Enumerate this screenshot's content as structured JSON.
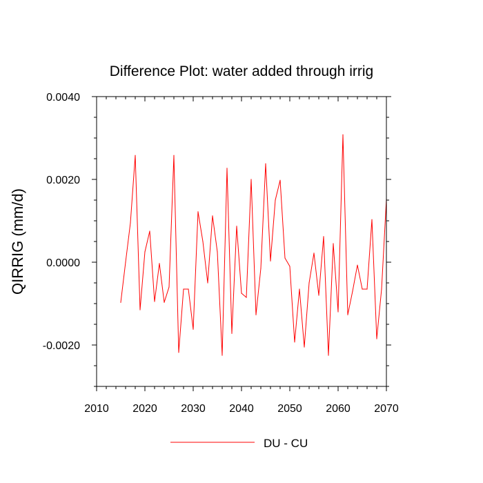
{
  "chart_data": {
    "type": "line",
    "title": "Difference Plot: water added through irrig",
    "xlabel": "",
    "ylabel": "QIRRIG  (mm/d)",
    "xlim": [
      2010,
      2070
    ],
    "ylim": [
      -0.003,
      0.004
    ],
    "xticks": [
      2010,
      2020,
      2030,
      2040,
      2050,
      2060,
      2070
    ],
    "xtick_labels": [
      "2010",
      "2020",
      "2030",
      "2040",
      "2050",
      "2060",
      "2070"
    ],
    "yticks": [
      0.004,
      0.002,
      0.0,
      -0.002
    ],
    "ytick_labels": [
      "0.0040",
      "0.0020",
      "0.0000",
      "-0.0020"
    ],
    "x_minor_step": 2,
    "y_minor_step": 0.0005,
    "legend_position": "bottom-center",
    "grid": false,
    "series": [
      {
        "name": "DU - CU",
        "color": "#ff0000",
        "x": [
          2015,
          2016,
          2017,
          2018,
          2019,
          2020,
          2021,
          2022,
          2023,
          2024,
          2025,
          2026,
          2027,
          2028,
          2029,
          2030,
          2031,
          2032,
          2033,
          2034,
          2035,
          2036,
          2037,
          2038,
          2039,
          2040,
          2041,
          2042,
          2043,
          2044,
          2045,
          2046,
          2047,
          2048,
          2049,
          2050,
          2051,
          2052,
          2053,
          2054,
          2055,
          2056,
          2057,
          2058,
          2059,
          2060,
          2061,
          2062,
          2063,
          2064,
          2065,
          2066,
          2067,
          2068,
          2069,
          2070
        ],
        "values": [
          -0.00097,
          0.0,
          0.00095,
          0.00258,
          -0.00115,
          0.00025,
          0.00075,
          -0.00095,
          -3e-05,
          -0.00097,
          -0.0006,
          0.00258,
          -0.00218,
          -0.00065,
          -0.00065,
          -0.00162,
          0.00122,
          0.0005,
          -0.0005,
          0.00112,
          0.00025,
          -0.00225,
          0.00227,
          -0.00172,
          0.00087,
          -0.00075,
          -0.00085,
          0.002,
          -0.00127,
          -0.00015,
          0.00238,
          3e-05,
          0.0015,
          0.00198,
          0.0001,
          -0.0001,
          -0.00193,
          -0.00065,
          -0.00205,
          -0.0005,
          0.00022,
          -0.0008,
          0.00062,
          -0.00225,
          0.00045,
          -0.0012,
          0.00308,
          -0.00127,
          -0.0007,
          -7e-05,
          -0.00065,
          -0.00065,
          0.00103,
          -0.00185,
          -0.00065,
          0.00152
        ]
      }
    ]
  }
}
